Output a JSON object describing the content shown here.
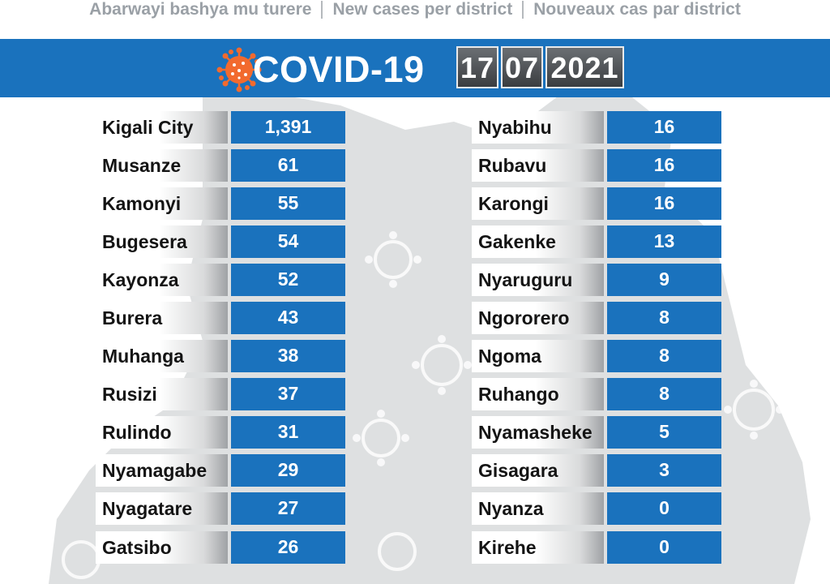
{
  "header": {
    "subtitle_rw": "Abarwayi bashya mu turere",
    "subtitle_en": "New cases per district",
    "subtitle_fr": "Nouveaux cas par district"
  },
  "banner": {
    "title": "COVID-19",
    "date_day": "17",
    "date_month": "07",
    "date_year": "2021",
    "color": "#1a72bd",
    "logo_icon": "virus-icon",
    "logo_color": "#f26a2e"
  },
  "districts_left": [
    {
      "name": "Kigali City",
      "cases": "1,391"
    },
    {
      "name": "Musanze",
      "cases": "61"
    },
    {
      "name": "Kamonyi",
      "cases": "55"
    },
    {
      "name": "Bugesera",
      "cases": "54"
    },
    {
      "name": "Kayonza",
      "cases": "52"
    },
    {
      "name": "Burera",
      "cases": "43"
    },
    {
      "name": "Muhanga",
      "cases": "38"
    },
    {
      "name": "Rusizi",
      "cases": "37"
    },
    {
      "name": "Rulindo",
      "cases": "31"
    },
    {
      "name": "Nyamagabe",
      "cases": "29"
    },
    {
      "name": "Nyagatare",
      "cases": "27"
    },
    {
      "name": "Gatsibo",
      "cases": "26"
    }
  ],
  "districts_right": [
    {
      "name": "Nyabihu",
      "cases": "16"
    },
    {
      "name": "Rubavu",
      "cases": "16"
    },
    {
      "name": "Karongi",
      "cases": "16"
    },
    {
      "name": "Gakenke",
      "cases": "13"
    },
    {
      "name": "Nyaruguru",
      "cases": "9"
    },
    {
      "name": "Ngororero",
      "cases": "8"
    },
    {
      "name": "Ngoma",
      "cases": "8"
    },
    {
      "name": "Ruhango",
      "cases": "8"
    },
    {
      "name": "Nyamasheke",
      "cases": "5"
    },
    {
      "name": "Gisagara",
      "cases": "3"
    },
    {
      "name": "Nyanza",
      "cases": "0"
    },
    {
      "name": "Kirehe",
      "cases": "0"
    }
  ]
}
